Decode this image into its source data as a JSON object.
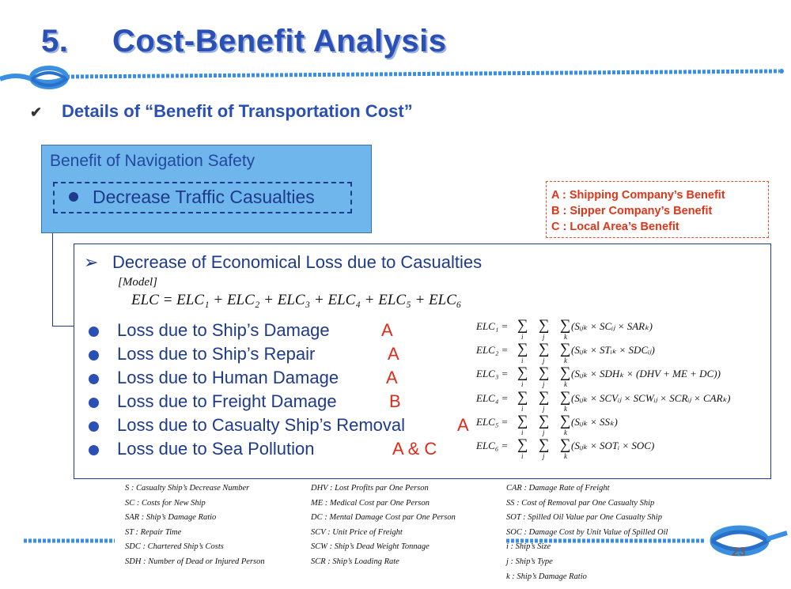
{
  "title": {
    "number": "5.",
    "text": "Cost-Benefit Analysis"
  },
  "subhead": "Details of “Benefit of Transportation Cost”",
  "nav_box": {
    "title": "Benefit of Navigation Safety",
    "item": "Decrease Traffic Casualties"
  },
  "legend": [
    "A : Shipping Company’s Benefit",
    "B : Sipper Company’s Benefit",
    "C : Local Area’s Benefit"
  ],
  "main": {
    "title": "Decrease of Economical Loss due to Casualties",
    "model_label": "[Model]",
    "model_eq": "ELC = ELC₁ + ELC₂ + ELC₃ + ELC₄ + ELC₅ + ELC₆",
    "losses": [
      {
        "label": "Loss due to Ship’s Damage",
        "mark": "A"
      },
      {
        "label": "Loss due to Ship’s Repair",
        "mark": "A"
      },
      {
        "label": "Loss due to Human Damage",
        "mark": "A"
      },
      {
        "label": "Loss due to Freight Damage",
        "mark": "B"
      },
      {
        "label": "Loss due to Casualty Ship’s Removal",
        "mark": "A"
      },
      {
        "label": "Loss due to Sea Pollution",
        "mark": "A & C"
      }
    ],
    "equations": [
      {
        "lhs": "ELC₁ =",
        "rhs": "(Sᵢⱼₖ × SCᵢⱼ × SARₖ)"
      },
      {
        "lhs": "ELC₂ =",
        "rhs": "(Sᵢⱼₖ × STᵢₖ × SDCᵢⱼ)"
      },
      {
        "lhs": "ELC₃ =",
        "rhs": "(Sᵢⱼₖ × SDHₖ × (DHV + ME + DC))"
      },
      {
        "lhs": "ELC₄ =",
        "rhs": "(Sᵢⱼₖ × SCVᵢⱼ × SCWᵢⱼ × SCRᵢⱼ × CARₖ)"
      },
      {
        "lhs": "ELC₅ =",
        "rhs": "(Sᵢⱼₖ × SSₖ)"
      },
      {
        "lhs": "ELC₆ =",
        "rhs": "(Sᵢⱼₖ × SOTᵢ × SOC)"
      }
    ],
    "sigma": "∑",
    "indices": [
      "i",
      "j",
      "k"
    ]
  },
  "glossary": {
    "col1": [
      "S    : Casualty Ship’s Decrease Number",
      "SC  : Costs for New Ship",
      "SAR : Ship’s Damage Ratio",
      "ST   : Repair Time",
      "SDC : Chartered Ship’s Costs",
      "SDH : Number of Dead or Injured Person"
    ],
    "col2": [
      "DHV : Lost Profits par One Person",
      "ME   : Medical Cost par One Person",
      "DC   : Mental Damage Cost par One Person",
      "SCV : Unit Price of Freight",
      "SCW : Ship’s Dead Weight Tonnage",
      "SCR : Ship’s Loading Rate"
    ],
    "col3": [
      "CAR : Damage Rate of Freight",
      "SS   : Cost of Removal par One Casualty Ship",
      "SOT : Spilled Oil Value par One Casualty Ship",
      "SOC : Damage Cost by Unit Value of Spilled Oil",
      "i      : Ship’s Size",
      "j      : Ship’s Type",
      "k     : Ship’s Damage Ratio"
    ]
  },
  "page_number": "23",
  "colors": {
    "title": "#2a4fb5",
    "box_fill": "#6fb6ec",
    "legend": "#e0351a",
    "rope": "#3a8fe0"
  }
}
